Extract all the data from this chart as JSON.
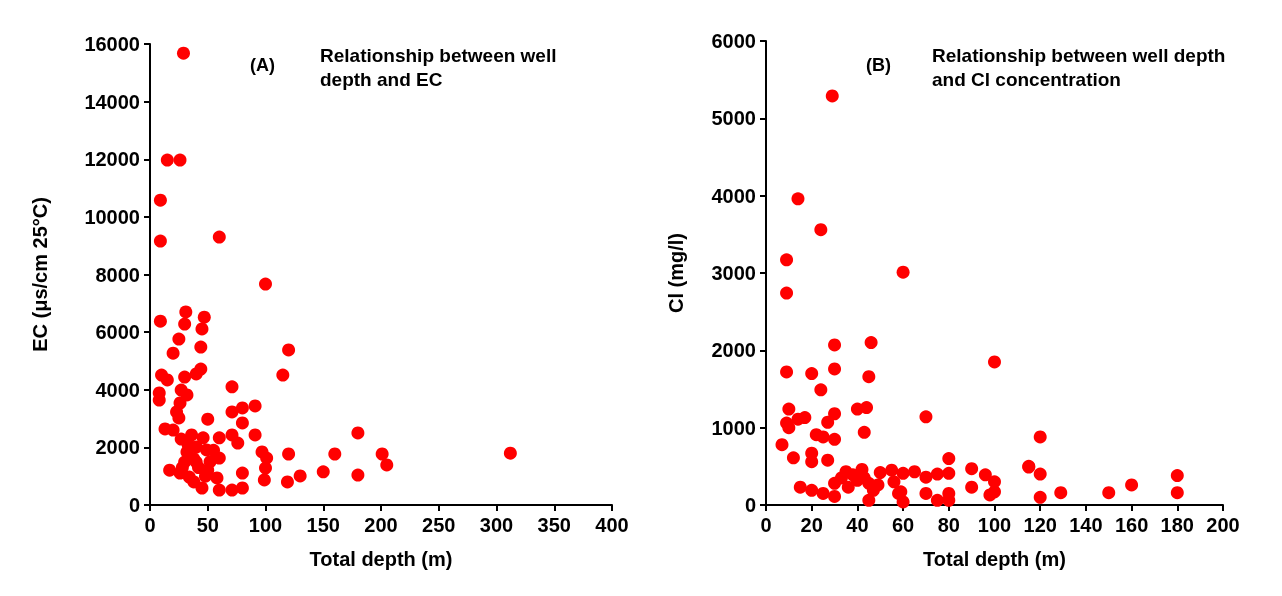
{
  "chart_data": [
    {
      "type": "scatter",
      "title": "Relationship between well depth and EC",
      "annotations": [
        "(A)"
      ],
      "xlabel": "Total depth (m)",
      "ylabel": "EC (μs/cm 25°C)",
      "marker": "circle",
      "grid": false,
      "xlim": [
        0,
        400
      ],
      "xticks": [
        0,
        50,
        100,
        150,
        200,
        250,
        300,
        350,
        400
      ],
      "ylim": [
        0,
        16000
      ],
      "yticks": [
        0,
        2000,
        4000,
        6000,
        8000,
        10000,
        12000,
        14000,
        16000
      ],
      "series": [
        {
          "color": "#ff0000",
          "x": [
            29,
            15,
            26,
            9,
            9,
            60,
            100,
            9,
            31,
            30,
            47,
            45,
            25,
            20,
            44,
            120,
            115,
            44,
            40,
            30,
            10,
            15,
            71,
            8,
            8,
            27,
            32,
            26,
            23,
            25,
            50,
            71,
            80,
            91,
            80,
            13,
            20,
            27,
            36,
            46,
            60,
            71,
            76,
            91,
            40,
            49,
            32,
            97,
            101,
            120,
            160,
            60,
            30,
            40,
            17,
            26,
            34,
            80,
            100,
            99,
            50,
            58,
            119,
            130,
            150,
            45,
            60,
            71,
            80,
            180,
            312,
            201,
            205,
            180,
            38,
            42,
            52,
            55,
            28,
            33,
            48,
            38
          ],
          "values": [
            15680,
            11970,
            11970,
            10580,
            9160,
            9300,
            7670,
            6380,
            6700,
            6280,
            6520,
            6110,
            5760,
            5270,
            5480,
            5380,
            4510,
            4720,
            4550,
            4440,
            4510,
            4340,
            4100,
            3890,
            3640,
            3990,
            3820,
            3540,
            3230,
            3020,
            2980,
            3230,
            3370,
            3440,
            2850,
            2640,
            2600,
            2290,
            2430,
            2330,
            2330,
            2430,
            2150,
            2430,
            2010,
            1910,
            1840,
            1840,
            1630,
            1770,
            1770,
            1630,
            1490,
            1490,
            1210,
            1110,
            970,
            1110,
            1280,
            870,
            1210,
            940,
            800,
            1010,
            1150,
            590,
            520,
            520,
            590,
            2500,
            1800,
            1770,
            1390,
            1040,
            1600,
            1300,
            1500,
            1900,
            1300,
            2100,
            1000,
            800
          ]
        }
      ]
    },
    {
      "type": "scatter",
      "title": "Relationship between well depth and Cl concentration",
      "annotations": [
        "(B)"
      ],
      "xlabel": "Total depth (m)",
      "ylabel": "Cl (mg/l)",
      "marker": "circle",
      "grid": false,
      "xlim": [
        0,
        200
      ],
      "xticks": [
        0,
        20,
        40,
        60,
        80,
        100,
        120,
        140,
        160,
        180,
        200
      ],
      "ylim": [
        0,
        6000
      ],
      "yticks": [
        0,
        1000,
        2000,
        3000,
        4000,
        5000,
        6000
      ],
      "series": [
        {
          "color": "#ff0000",
          "x": [
            29,
            14,
            24,
            9,
            60,
            9,
            30,
            46,
            9,
            20,
            30,
            45,
            100,
            24,
            10,
            9,
            10,
            14,
            17,
            27,
            30,
            40,
            44,
            70,
            43,
            22,
            25,
            30,
            7,
            12,
            20,
            20,
            27,
            80,
            90,
            96,
            100,
            90,
            100,
            98,
            115,
            15,
            20,
            25,
            30,
            45,
            60,
            75,
            80,
            80,
            70,
            59,
            35,
            42,
            50,
            55,
            60,
            65,
            70,
            75,
            80,
            30,
            33,
            36,
            40,
            45,
            49,
            47,
            56,
            58,
            38,
            43,
            120,
            115,
            120,
            120,
            129,
            150,
            160,
            180,
            180
          ],
          "values": [
            5290,
            3960,
            3560,
            3170,
            3010,
            2740,
            2070,
            2100,
            1720,
            1700,
            1760,
            1660,
            1850,
            1490,
            1240,
            1060,
            1000,
            1110,
            1130,
            1070,
            1180,
            1240,
            1260,
            1140,
            940,
            910,
            880,
            850,
            780,
            610,
            670,
            560,
            580,
            600,
            470,
            390,
            300,
            230,
            170,
            130,
            500,
            230,
            190,
            150,
            110,
            60,
            40,
            60,
            60,
            150,
            150,
            170,
            430,
            460,
            420,
            450,
            410,
            430,
            360,
            400,
            410,
            280,
            350,
            230,
            320,
            280,
            260,
            190,
            300,
            150,
            390,
            350,
            880,
            490,
            400,
            100,
            160,
            160,
            260,
            380,
            160
          ]
        }
      ]
    }
  ]
}
